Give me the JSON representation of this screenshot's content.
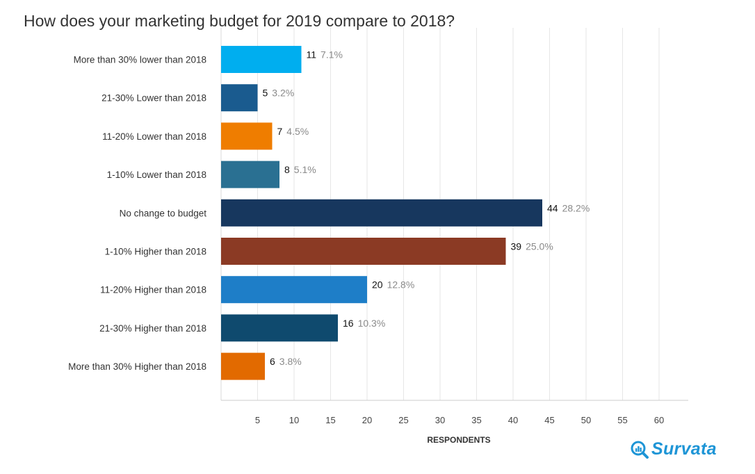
{
  "chart_data": {
    "type": "bar",
    "orientation": "horizontal",
    "title": "How does your marketing budget for 2019 compare to 2018?",
    "xlabel": "RESPONDENTS",
    "xlim": [
      0,
      64
    ],
    "xticks": [
      5,
      10,
      15,
      20,
      25,
      30,
      35,
      40,
      45,
      50,
      55,
      60
    ],
    "grid": true,
    "categories": [
      "More than 30% lower than 2018",
      "21-30% Lower than 2018",
      "11-20% Lower than 2018",
      "1-10% Lower than 2018",
      "No change to budget",
      "1-10% Higher than 2018",
      "11-20% Higher than 2018",
      "21-30% Higher than 2018",
      "More than 30% Higher than 2018"
    ],
    "values": [
      11,
      5,
      7,
      8,
      44,
      39,
      20,
      16,
      6
    ],
    "percent_labels": [
      "7.1%",
      "3.2%",
      "4.5%",
      "5.1%",
      "28.2%",
      "25.0%",
      "12.8%",
      "10.3%",
      "3.8%"
    ],
    "colors": [
      "#00aeef",
      "#1a5b8f",
      "#ef7d00",
      "#2a7092",
      "#17375e",
      "#8b3a24",
      "#1e7ec8",
      "#0f4a6e",
      "#e26a00"
    ]
  },
  "brand": {
    "name": "Survata",
    "icon": "magnifier-chart-icon",
    "color": "#1e95d6"
  }
}
